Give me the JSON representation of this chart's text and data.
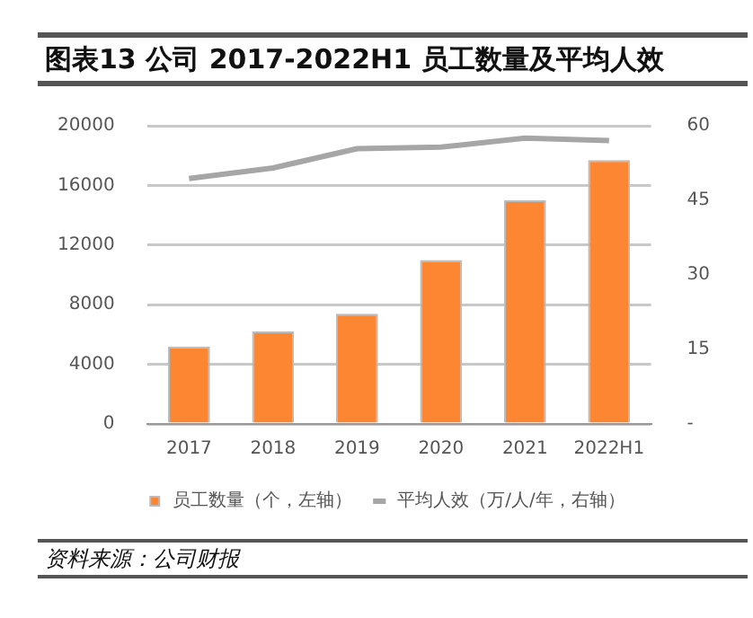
{
  "chart_data": {
    "type": "bar",
    "title": "图表13 公司 2017-2022H1 员工数量及平均人效",
    "categories": [
      "2017",
      "2018",
      "2019",
      "2020",
      "2021",
      "2022H1"
    ],
    "series": [
      {
        "name": "员工数量（个，左轴）",
        "color": "#fd8632",
        "values": [
          5200,
          6200,
          7400,
          11000,
          15000,
          17700
        ]
      },
      {
        "name": "平均人效（万/人/年，右轴）",
        "type": "line",
        "axis": "y2",
        "color": "#a6a6a6",
        "values": [
          49.4,
          51.5,
          55.4,
          55.7,
          57.5,
          57.0
        ]
      }
    ],
    "ylim": [
      0,
      20000
    ],
    "yticks": [
      0,
      4000,
      8000,
      12000,
      16000,
      20000
    ],
    "y2lim": [
      0,
      60
    ],
    "y2ticks": [
      {
        "value": 0,
        "label": "-"
      },
      15,
      30,
      45,
      60
    ],
    "grid": "y",
    "legend": "bottom",
    "marker": "none",
    "line_style": "solid",
    "annotations": [
      "资料来源：公司财报"
    ]
  }
}
